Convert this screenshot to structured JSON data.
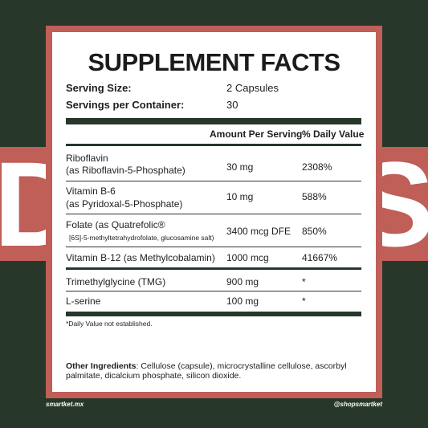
{
  "background": {
    "dark_green": "#27372a",
    "salmon": "#c05e58"
  },
  "big_letters": {
    "left": "D",
    "right": "S"
  },
  "panel": {
    "title": "SUPPLEMENT FACTS",
    "serving_size_label": "Serving Size:",
    "serving_size_value": "2 Capsules",
    "servings_label": "Servings per Container:",
    "servings_value": "30",
    "col_amount": "Amount Per Serving",
    "col_dv": "% Daily Value",
    "rows": [
      {
        "name": "Riboflavin",
        "sub": "(as Riboflavin-5-Phosphate)",
        "amount": "30 mg",
        "dv": "2308%"
      },
      {
        "name": "Vitamin B-6",
        "sub": "(as Pyridoxal-5-Phosphate)",
        "amount": "10 mg",
        "dv": "588%"
      },
      {
        "name": "Folate (as Quatrefolic®",
        "sub": "[6S]-5-methyltetrahydrofolate, glucosamine salt)",
        "amount": "3400 mcg DFE",
        "dv": "850%"
      },
      {
        "name": "Vitamin B-12 (as Methylcobalamin)",
        "amount": "1000 mcg",
        "dv": "41667%"
      },
      {
        "name": "Trimethylglycine (TMG)",
        "amount": "900 mg",
        "dv": "*"
      },
      {
        "name": "L-serine",
        "amount": "100 mg",
        "dv": "*"
      }
    ],
    "footnote": "*Daily Value not established.",
    "other_label": "Other Ingredients",
    "other_text": ": Cellulose (capsule), microcrystalline cellulose, ascorbyl palmitate, dicalcium phosphate, silicon dioxide."
  },
  "footer": {
    "left": "smartket.mx",
    "right": "@shopsmartket"
  }
}
